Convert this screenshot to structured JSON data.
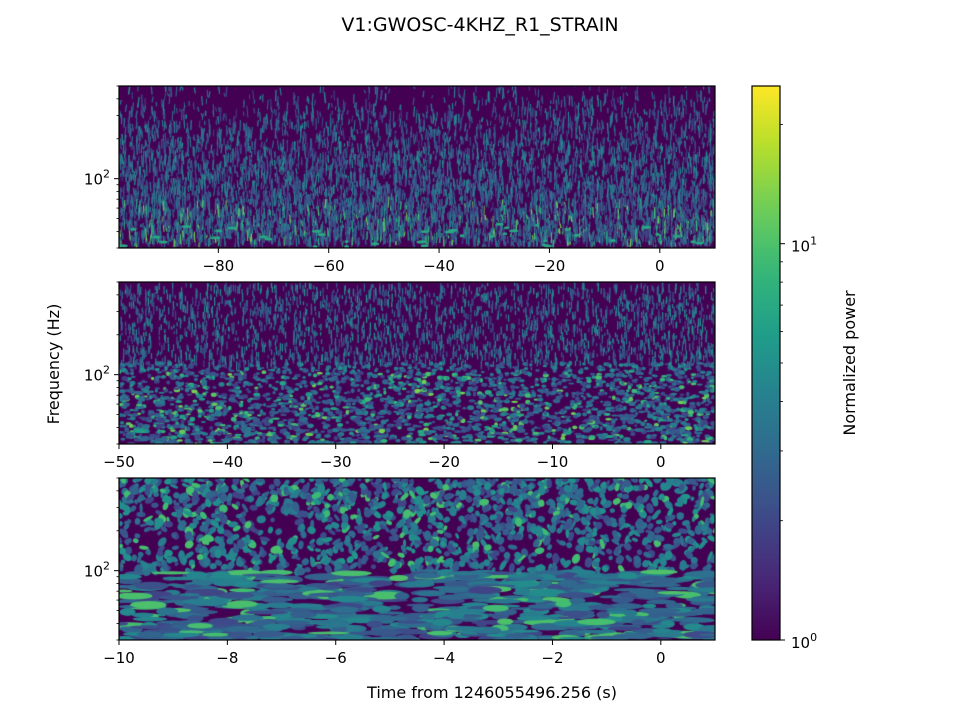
{
  "title": "V1:GWOSC-4KHZ_R1_STRAIN",
  "ylabel": "Frequency (Hz)",
  "xlabel": "Time from 1246055496.256 (s)",
  "colorbar": {
    "label": "Normalized power",
    "scale": "log",
    "range": [
      1,
      25
    ],
    "colormap": "viridis",
    "tick_labels": [
      {
        "value": 1,
        "base": "10",
        "exp": "0"
      },
      {
        "value": 10,
        "base": "10",
        "exp": "1"
      }
    ]
  },
  "chart_data": [
    {
      "type": "heatmap",
      "name": "",
      "xlim": [
        -98,
        10
      ],
      "yscale": "log",
      "ylim": [
        30,
        500
      ],
      "xticks": [
        -80,
        -60,
        -40,
        -20,
        0
      ],
      "xtick_labels": [
        "−80",
        "−60",
        "−40",
        "−20",
        "0"
      ],
      "ytick_labels": [
        {
          "value": 100,
          "base": "10",
          "exp": "2"
        }
      ],
      "texture": {
        "style": "fine",
        "seed": 11
      }
    },
    {
      "type": "heatmap",
      "name": "",
      "xlim": [
        -50,
        5
      ],
      "yscale": "log",
      "ylim": [
        30,
        500
      ],
      "xticks": [
        -50,
        -40,
        -30,
        -20,
        -10,
        0
      ],
      "xtick_labels": [
        "−50",
        "−40",
        "−30",
        "−20",
        "−10",
        "0"
      ],
      "ytick_labels": [
        {
          "value": 100,
          "base": "10",
          "exp": "2"
        }
      ],
      "texture": {
        "style": "medium",
        "seed": 23
      }
    },
    {
      "type": "heatmap",
      "name": "",
      "xlim": [
        -10,
        1
      ],
      "yscale": "log",
      "ylim": [
        30,
        500
      ],
      "xticks": [
        -10,
        -8,
        -6,
        -4,
        -2,
        0
      ],
      "xtick_labels": [
        "−10",
        "−8",
        "−6",
        "−4",
        "−2",
        "0"
      ],
      "ytick_labels": [
        {
          "value": 100,
          "base": "10",
          "exp": "2"
        }
      ],
      "texture": {
        "style": "coarse",
        "seed": 37
      }
    }
  ]
}
